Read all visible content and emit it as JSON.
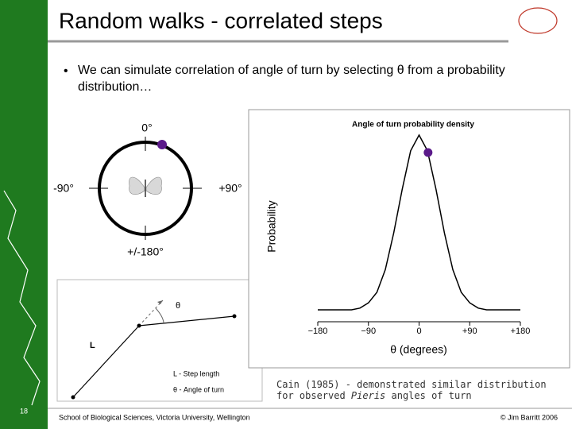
{
  "header": {
    "title": "Random  walks - correlated steps"
  },
  "bullet": "We can simulate correlation of angle of turn by selecting θ from a probability distribution…",
  "compass": {
    "top": "0°",
    "left": "-90°",
    "right": "+90°",
    "bottom": "+/-180°"
  },
  "step_diagram": {
    "angle": "θ",
    "length": "L",
    "legend": [
      "L  - Step length",
      "θ  - Angle of turn"
    ]
  },
  "chart_data": {
    "type": "line",
    "title": "Angle of turn probability density",
    "xlabel": "θ (degrees)",
    "ylabel": "Probability",
    "x": [
      -180,
      -165,
      -150,
      -135,
      -120,
      -105,
      -90,
      -75,
      -60,
      -45,
      -30,
      -15,
      0,
      15,
      30,
      45,
      60,
      75,
      90,
      105,
      120,
      135,
      150,
      165,
      180
    ],
    "values": [
      0,
      0,
      0,
      0,
      0,
      0.01,
      0.04,
      0.1,
      0.23,
      0.44,
      0.69,
      0.91,
      1,
      0.91,
      0.69,
      0.44,
      0.23,
      0.1,
      0.04,
      0.01,
      0,
      0,
      0,
      0,
      0
    ],
    "color": "#000000",
    "xlim": [
      -180,
      180
    ],
    "ylim": [
      0,
      1
    ],
    "xticks": [
      {
        "value": -180,
        "label": "−180"
      },
      {
        "value": -90,
        "label": "−90"
      },
      0,
      {
        "value": 90,
        "label": "+90"
      },
      {
        "value": 180,
        "label": "+180"
      }
    ],
    "highlight": {
      "x": 16,
      "y": 0.9,
      "color": "#5b1a8a"
    }
  },
  "caption": {
    "before": "Cain (1985) - demonstrated similar distribution for observed ",
    "italic": "Pieris",
    "after": " angles of turn"
  },
  "footer": {
    "page": "18",
    "school": "School of Biological Sciences, Victoria University, Wellington",
    "copyright": "© Jim Barritt 2006"
  }
}
